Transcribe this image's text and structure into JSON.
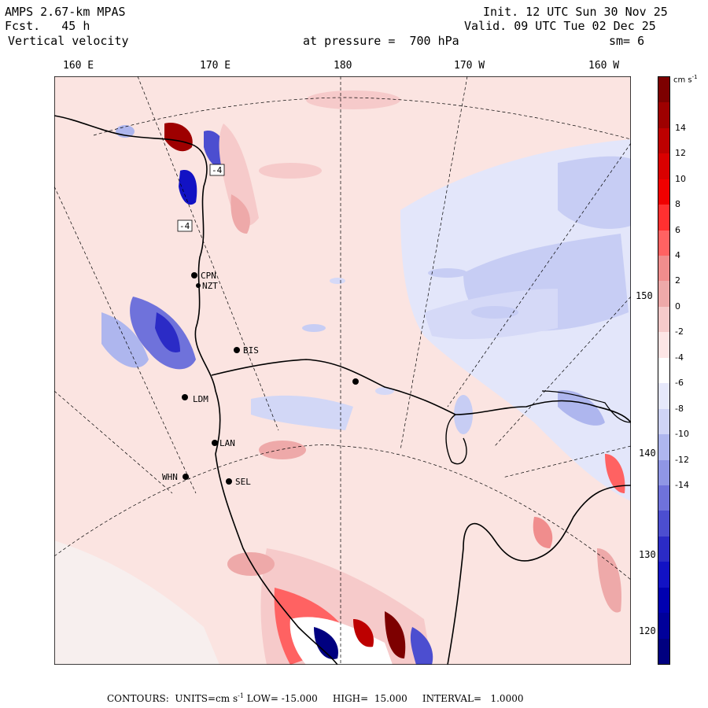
{
  "header": {
    "model": "AMPS 2.67-km MPAS",
    "forecast_label": "Fcst.",
    "forecast_hours": "45 h",
    "field": "Vertical velocity",
    "init": "Init. 12 UTC Sun 30 Nov 25",
    "valid": "Valid. 09 UTC Tue 02 Dec 25",
    "level": "at pressure =  700 hPa",
    "smoothing": "sm= 6"
  },
  "longitude_labels": [
    "160 E",
    "170 E",
    "180",
    "170 W",
    "160 W"
  ],
  "latitude_labels": [
    "150 W",
    "140 W",
    "130 W",
    "120 W"
  ],
  "stations": [
    {
      "id": "CPN"
    },
    {
      "id": "NZT"
    },
    {
      "id": "BIS"
    },
    {
      "id": "LDM"
    },
    {
      "id": "LAN"
    },
    {
      "id": "WHN"
    },
    {
      "id": "SEL"
    }
  ],
  "contour_value_labels": [
    "-4",
    "-4"
  ],
  "colorbar": {
    "units": "cm s",
    "units_exponent": "-1",
    "ticks": [
      "14",
      "12",
      "10",
      "8",
      "6",
      "4",
      "2",
      "0",
      "-2",
      "-4",
      "-6",
      "-8",
      "-10",
      "-12",
      "-14"
    ],
    "colors": [
      "#7d0000",
      "#9e0000",
      "#bd0000",
      "#d90000",
      "#f00000",
      "#ff3030",
      "#ff6262",
      "#f08d8d",
      "#eea9a9",
      "#f6caca",
      "#fde5e5",
      "#ffffff",
      "#e6e8fb",
      "#cfd4f6",
      "#aeb6ee",
      "#8f96e5",
      "#6f72db",
      "#4c4ed0",
      "#2b2bc6",
      "#1212c4",
      "#0000b0",
      "#00009a",
      "#000080"
    ]
  },
  "footer": {
    "text": "CONTOURS:  UNITS=cm s",
    "units_exponent": "-1",
    "low": "LOW= -15.000",
    "high": "HIGH=  15.000",
    "interval": "INTERVAL=   1.0000"
  }
}
